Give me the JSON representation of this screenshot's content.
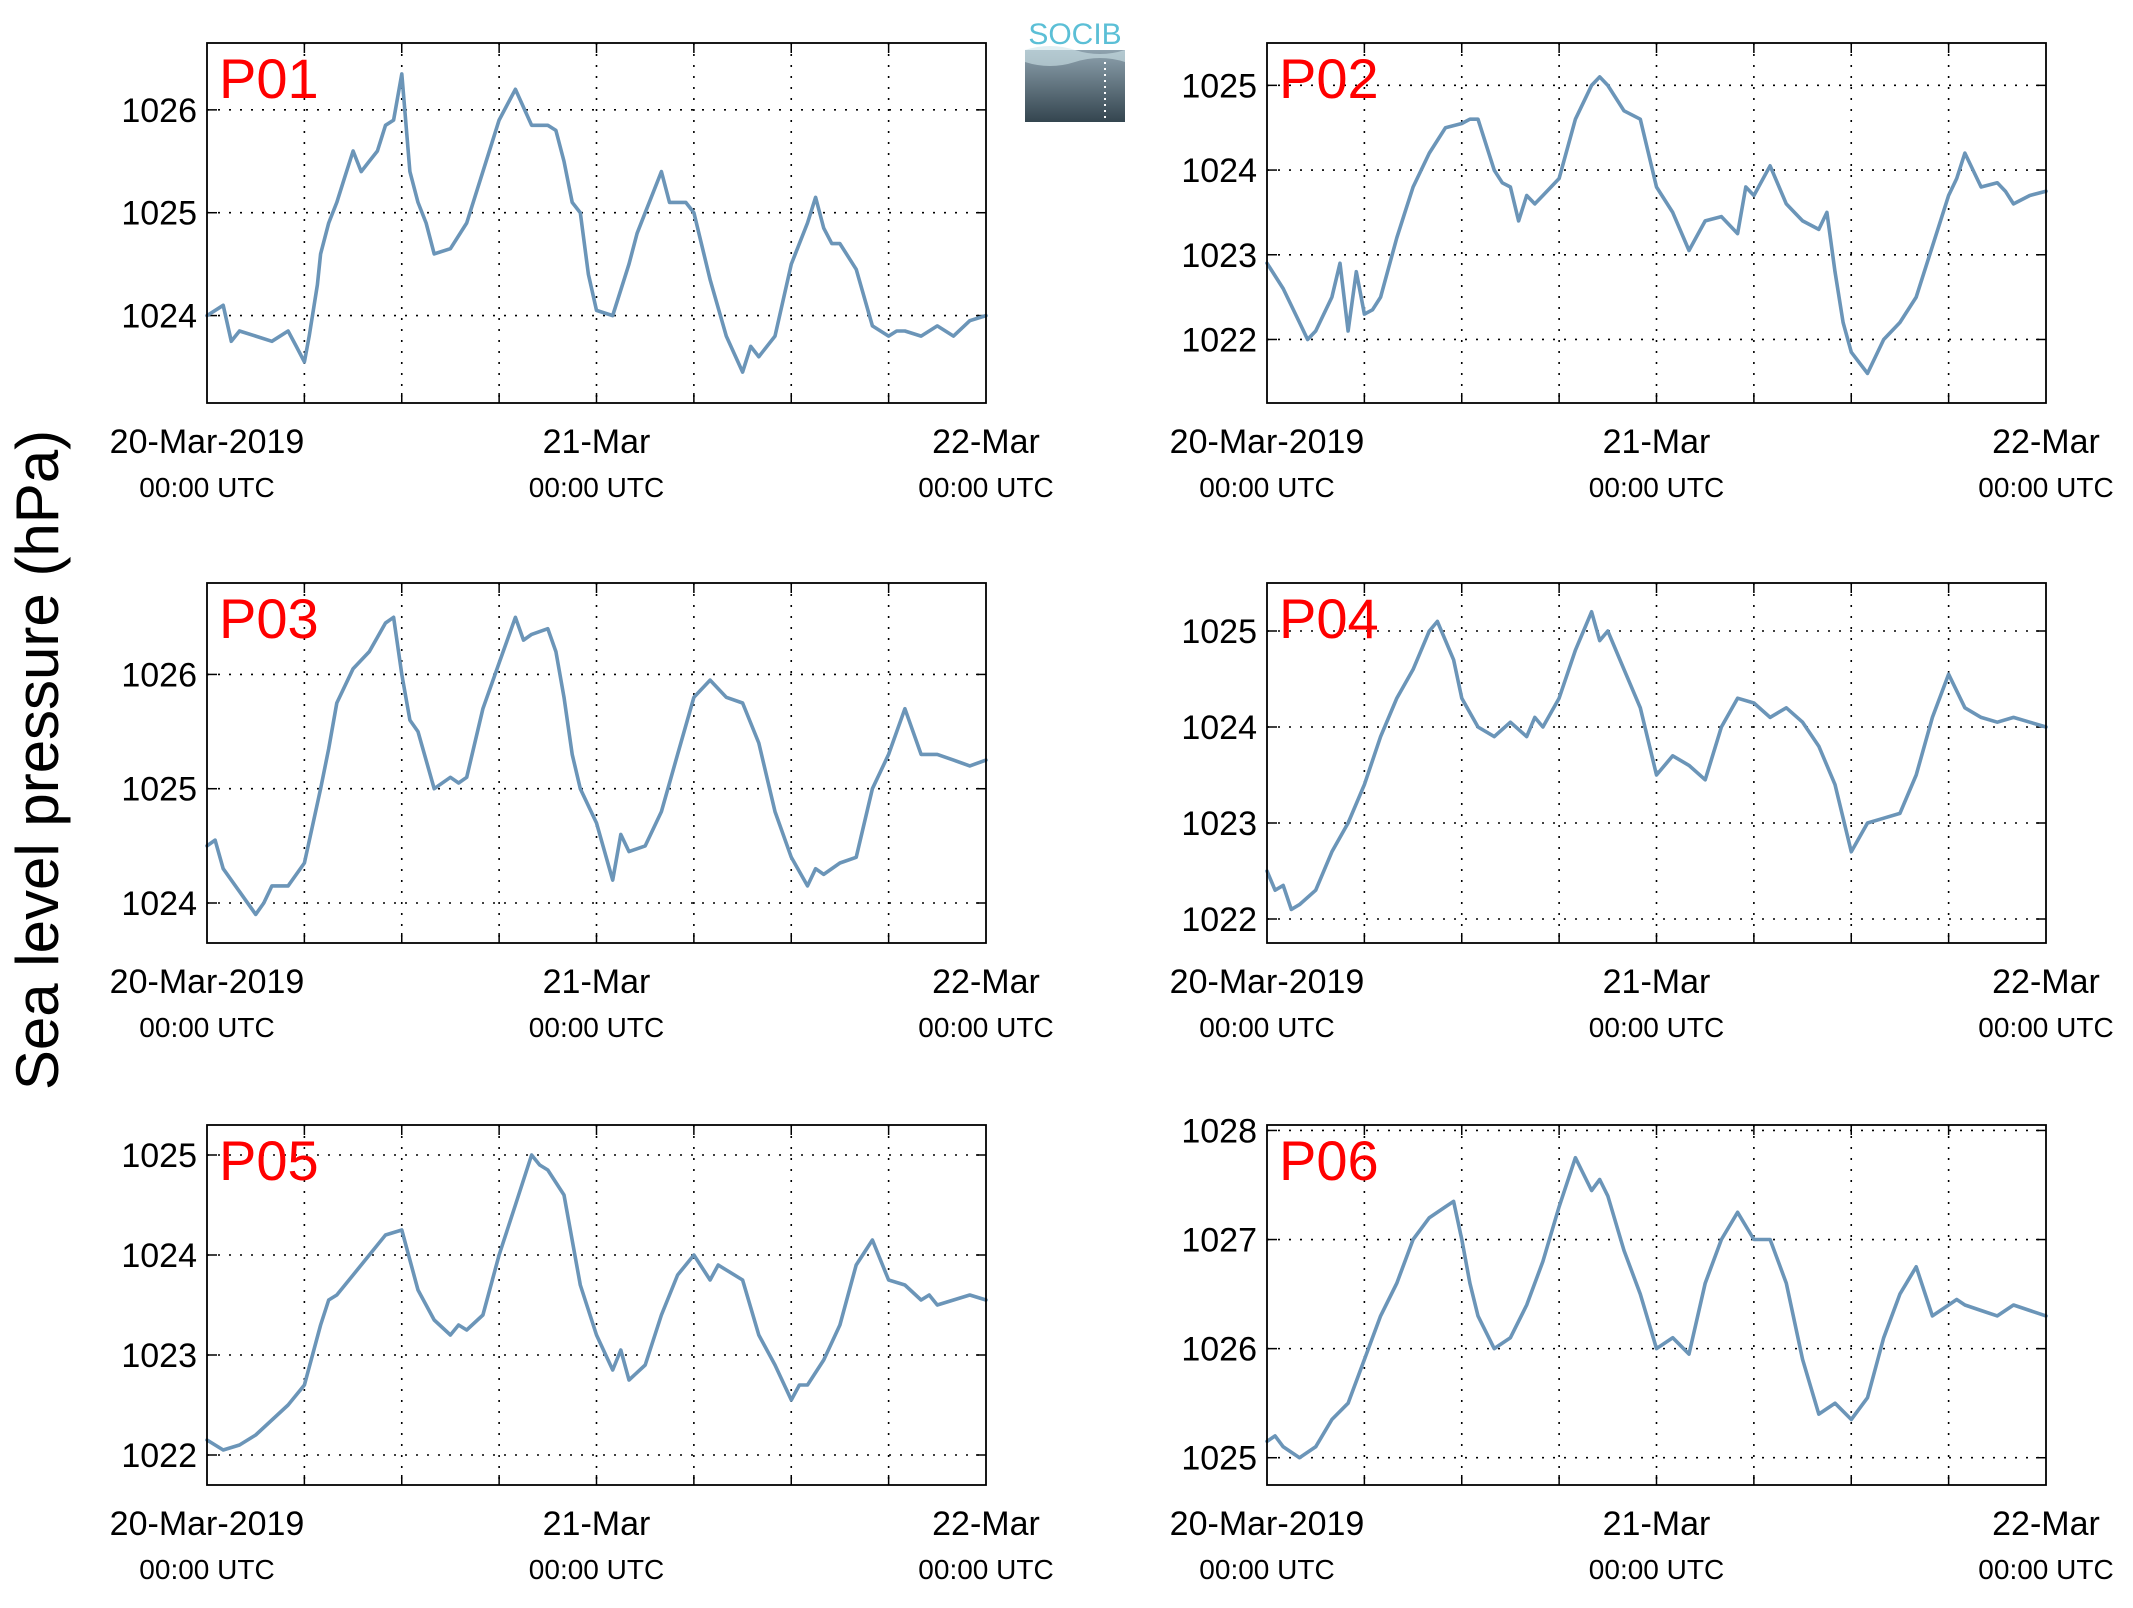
{
  "figure": {
    "ylabel": "Sea level pressure (hPa)",
    "logo_text": "SOCIB",
    "x_tick_dates": [
      "20-Mar-2019",
      "21-Mar",
      "22-Mar"
    ],
    "x_tick_times": [
      "00:00 UTC",
      "00:00 UTC",
      "00:00 UTC"
    ],
    "line_color": "#6b95b8",
    "label_color": "#ff0000",
    "logo_colors": {
      "text": "#5bbfd6",
      "top": "#8ea2ae",
      "bottom": "#34454f"
    }
  },
  "chart_data": [
    {
      "type": "line",
      "title": "P01",
      "x_unit": "hours since 20-Mar-2019 00:00 UTC",
      "xlim": [
        0,
        48
      ],
      "ylim": [
        1023.15,
        1026.65
      ],
      "yticks": [
        1024,
        1025,
        1026
      ],
      "grid": true,
      "x": [
        0,
        1,
        1.5,
        2,
        3,
        4,
        5,
        5.5,
        6,
        6.3,
        6.8,
        7,
        7.5,
        8,
        8.5,
        9,
        9.5,
        10,
        10.5,
        11,
        11.5,
        12,
        12.5,
        13,
        13.5,
        14,
        15,
        16,
        17,
        18,
        19,
        20,
        21,
        21.5,
        22,
        22.5,
        23,
        23.5,
        24,
        25,
        26,
        26.5,
        27,
        28,
        28.5,
        29,
        29.5,
        30,
        31,
        32,
        33,
        33.5,
        34,
        35,
        36,
        37,
        37.5,
        38,
        38.5,
        39,
        40,
        41,
        42,
        42.5,
        43,
        44,
        45,
        46,
        47,
        48
      ],
      "series": [
        {
          "values": [
            1024.0,
            1024.1,
            1023.75,
            1023.85,
            1023.8,
            1023.75,
            1023.85,
            1023.7,
            1023.55,
            1023.8,
            1024.3,
            1024.6,
            1024.9,
            1025.1,
            1025.35,
            1025.6,
            1025.4,
            1025.5,
            1025.6,
            1025.85,
            1025.9,
            1026.35,
            1025.4,
            1025.1,
            1024.9,
            1024.6,
            1024.65,
            1024.9,
            1025.4,
            1025.9,
            1026.2,
            1025.85,
            1025.85,
            1025.8,
            1025.5,
            1025.1,
            1025.0,
            1024.4,
            1024.05,
            1024.0,
            1024.5,
            1024.8,
            1025.0,
            1025.4,
            1025.1,
            1025.1,
            1025.1,
            1025.0,
            1024.35,
            1023.8,
            1023.45,
            1023.7,
            1023.6,
            1023.8,
            1024.5,
            1024.9,
            1025.15,
            1024.85,
            1024.7,
            1024.7,
            1024.45,
            1023.9,
            1023.8,
            1023.85,
            1023.85,
            1023.8,
            1023.9,
            1023.8,
            1023.95,
            1024.0
          ]
        }
      ]
    },
    {
      "type": "line",
      "title": "P02",
      "x_unit": "hours since 20-Mar-2019 00:00 UTC",
      "xlim": [
        0,
        48
      ],
      "ylim": [
        1021.25,
        1025.5
      ],
      "yticks": [
        1022,
        1023,
        1024,
        1025
      ],
      "grid": true,
      "x": [
        0,
        1,
        2,
        2.5,
        3,
        4,
        4.5,
        5,
        5.5,
        6,
        6.5,
        7,
        8,
        8.5,
        9,
        10,
        11,
        12,
        12.5,
        13,
        14,
        14.5,
        15,
        15.5,
        16,
        16.5,
        17,
        18,
        19,
        20,
        20.5,
        21,
        22,
        23,
        24,
        25,
        26,
        27,
        28,
        29,
        29.5,
        30,
        31,
        32,
        32.5,
        33,
        34,
        34.5,
        35,
        35.5,
        36,
        37,
        38,
        39,
        40,
        41,
        42,
        42.5,
        43,
        44,
        45,
        45.5,
        46,
        47,
        48
      ],
      "series": [
        {
          "values": [
            1022.9,
            1022.6,
            1022.2,
            1022.0,
            1022.1,
            1022.5,
            1022.9,
            1022.1,
            1022.8,
            1022.3,
            1022.35,
            1022.5,
            1023.2,
            1023.5,
            1023.8,
            1024.2,
            1024.5,
            1024.55,
            1024.6,
            1024.6,
            1024.0,
            1023.85,
            1023.8,
            1023.4,
            1023.7,
            1023.6,
            1023.7,
            1023.9,
            1024.6,
            1025.0,
            1025.1,
            1025.0,
            1024.7,
            1024.6,
            1023.8,
            1023.5,
            1023.05,
            1023.4,
            1023.45,
            1023.25,
            1023.8,
            1023.7,
            1024.05,
            1023.6,
            1023.5,
            1023.4,
            1023.3,
            1023.5,
            1022.8,
            1022.2,
            1021.85,
            1021.6,
            1022.0,
            1022.2,
            1022.5,
            1023.1,
            1023.7,
            1023.9,
            1024.2,
            1023.8,
            1023.85,
            1023.75,
            1023.6,
            1023.7,
            1023.75
          ]
        }
      ]
    },
    {
      "type": "line",
      "title": "P03",
      "x_unit": "hours since 20-Mar-2019 00:00 UTC",
      "xlim": [
        0,
        48
      ],
      "ylim": [
        1023.65,
        1026.8
      ],
      "yticks": [
        1024,
        1025,
        1026
      ],
      "grid": true,
      "x": [
        0,
        0.5,
        1,
        2,
        3,
        3.5,
        4,
        5,
        6,
        7,
        7.5,
        8,
        9,
        10,
        11,
        11.5,
        12,
        12.5,
        13,
        14,
        15,
        15.5,
        16,
        17,
        18,
        19,
        19.5,
        20,
        21,
        21.5,
        22,
        22.5,
        23,
        24,
        25,
        25.5,
        26,
        27,
        28,
        29,
        30,
        31,
        32,
        33,
        34,
        35,
        36,
        37,
        37.5,
        38,
        39,
        40,
        41,
        42,
        43,
        44,
        45,
        46,
        47,
        48
      ],
      "series": [
        {
          "values": [
            1024.5,
            1024.55,
            1024.3,
            1024.1,
            1023.9,
            1024.0,
            1024.15,
            1024.15,
            1024.35,
            1025.0,
            1025.35,
            1025.75,
            1026.05,
            1026.2,
            1026.45,
            1026.5,
            1026.0,
            1025.6,
            1025.5,
            1025.0,
            1025.1,
            1025.05,
            1025.1,
            1025.7,
            1026.1,
            1026.5,
            1026.3,
            1026.35,
            1026.4,
            1026.2,
            1025.8,
            1025.3,
            1025.0,
            1024.7,
            1024.2,
            1024.6,
            1024.45,
            1024.5,
            1024.8,
            1025.3,
            1025.8,
            1025.95,
            1025.8,
            1025.75,
            1025.4,
            1024.8,
            1024.4,
            1024.15,
            1024.3,
            1024.25,
            1024.35,
            1024.4,
            1025.0,
            1025.3,
            1025.7,
            1025.3,
            1025.3,
            1025.25,
            1025.2,
            1025.25
          ]
        }
      ]
    },
    {
      "type": "line",
      "title": "P04",
      "x_unit": "hours since 20-Mar-2019 00:00 UTC",
      "xlim": [
        0,
        48
      ],
      "ylim": [
        1021.75,
        1025.5
      ],
      "yticks": [
        1022,
        1023,
        1024,
        1025
      ],
      "grid": true,
      "x": [
        0,
        0.5,
        1,
        1.5,
        2,
        3,
        4,
        5,
        6,
        7,
        8,
        9,
        10,
        10.5,
        11,
        11.5,
        12,
        13,
        14,
        15,
        16,
        16.5,
        17,
        18,
        19,
        20,
        20.5,
        21,
        22,
        23,
        24,
        25,
        26,
        27,
        28,
        29,
        30,
        31,
        32,
        33,
        34,
        35,
        36,
        37,
        38,
        39,
        40,
        41,
        42,
        43,
        44,
        45,
        46,
        47,
        48
      ],
      "series": [
        {
          "values": [
            1022.5,
            1022.3,
            1022.35,
            1022.1,
            1022.15,
            1022.3,
            1022.7,
            1023.0,
            1023.4,
            1023.9,
            1024.3,
            1024.6,
            1025.0,
            1025.1,
            1024.9,
            1024.7,
            1024.3,
            1024.0,
            1023.9,
            1024.05,
            1023.9,
            1024.1,
            1024.0,
            1024.3,
            1024.8,
            1025.2,
            1024.9,
            1025.0,
            1024.6,
            1024.2,
            1023.5,
            1023.7,
            1023.6,
            1023.45,
            1024.0,
            1024.3,
            1024.25,
            1024.1,
            1024.2,
            1024.05,
            1023.8,
            1023.4,
            1022.7,
            1023.0,
            1023.05,
            1023.1,
            1023.5,
            1024.1,
            1024.55,
            1024.2,
            1024.1,
            1024.05,
            1024.1,
            1024.05,
            1024.0
          ]
        }
      ]
    },
    {
      "type": "line",
      "title": "P05",
      "x_unit": "hours since 20-Mar-2019 00:00 UTC",
      "xlim": [
        0,
        48
      ],
      "ylim": [
        1021.7,
        1025.3
      ],
      "yticks": [
        1022,
        1023,
        1024,
        1025
      ],
      "grid": true,
      "x": [
        0,
        1,
        2,
        3,
        4,
        5,
        6,
        7,
        7.5,
        8,
        9,
        10,
        11,
        12,
        12.5,
        13,
        14,
        15,
        15.5,
        16,
        17,
        18,
        19,
        20,
        20.5,
        21,
        22,
        23,
        24,
        25,
        25.5,
        26,
        27,
        28,
        29,
        30,
        31,
        31.5,
        32,
        33,
        34,
        35,
        36,
        36.5,
        37,
        38,
        39,
        40,
        41,
        42,
        43,
        44,
        44.5,
        45,
        46,
        47,
        48
      ],
      "series": [
        {
          "values": [
            1022.15,
            1022.05,
            1022.1,
            1022.2,
            1022.35,
            1022.5,
            1022.7,
            1023.3,
            1023.55,
            1023.6,
            1023.8,
            1024.0,
            1024.2,
            1024.25,
            1023.95,
            1023.65,
            1023.35,
            1023.2,
            1023.3,
            1023.25,
            1023.4,
            1024.0,
            1024.5,
            1025.0,
            1024.9,
            1024.85,
            1024.6,
            1023.7,
            1023.2,
            1022.85,
            1023.05,
            1022.75,
            1022.9,
            1023.4,
            1023.8,
            1024.0,
            1023.75,
            1023.9,
            1023.85,
            1023.75,
            1023.2,
            1022.9,
            1022.55,
            1022.7,
            1022.7,
            1022.95,
            1023.3,
            1023.9,
            1024.15,
            1023.75,
            1023.7,
            1023.55,
            1023.6,
            1023.5,
            1023.55,
            1023.6,
            1023.55
          ]
        }
      ]
    },
    {
      "type": "line",
      "title": "P06",
      "x_unit": "hours since 20-Mar-2019 00:00 UTC",
      "xlim": [
        0,
        48
      ],
      "ylim": [
        1024.75,
        1028.05
      ],
      "yticks": [
        1025,
        1026,
        1027,
        1028
      ],
      "grid": true,
      "x": [
        0,
        0.5,
        1,
        2,
        3,
        4,
        5,
        6,
        7,
        8,
        9,
        10,
        11,
        11.5,
        12,
        12.5,
        13,
        14,
        15,
        16,
        17,
        18,
        19,
        20,
        20.5,
        21,
        22,
        23,
        24,
        25,
        26,
        27,
        28,
        29,
        30,
        31,
        32,
        33,
        34,
        35,
        36,
        37,
        38,
        39,
        40,
        41,
        42,
        42.5,
        43,
        44,
        45,
        46,
        47,
        48
      ],
      "series": [
        {
          "values": [
            1025.15,
            1025.2,
            1025.1,
            1025.0,
            1025.1,
            1025.35,
            1025.5,
            1025.9,
            1026.3,
            1026.6,
            1027.0,
            1027.2,
            1027.3,
            1027.35,
            1027.0,
            1026.6,
            1026.3,
            1026.0,
            1026.1,
            1026.4,
            1026.8,
            1027.3,
            1027.75,
            1027.45,
            1027.55,
            1027.4,
            1026.9,
            1026.5,
            1026.0,
            1026.1,
            1025.95,
            1026.6,
            1027.0,
            1027.25,
            1027.0,
            1027.0,
            1026.6,
            1025.9,
            1025.4,
            1025.5,
            1025.35,
            1025.55,
            1026.1,
            1026.5,
            1026.75,
            1026.3,
            1026.4,
            1026.45,
            1026.4,
            1026.35,
            1026.3,
            1026.4,
            1026.35,
            1026.3
          ]
        }
      ]
    }
  ]
}
